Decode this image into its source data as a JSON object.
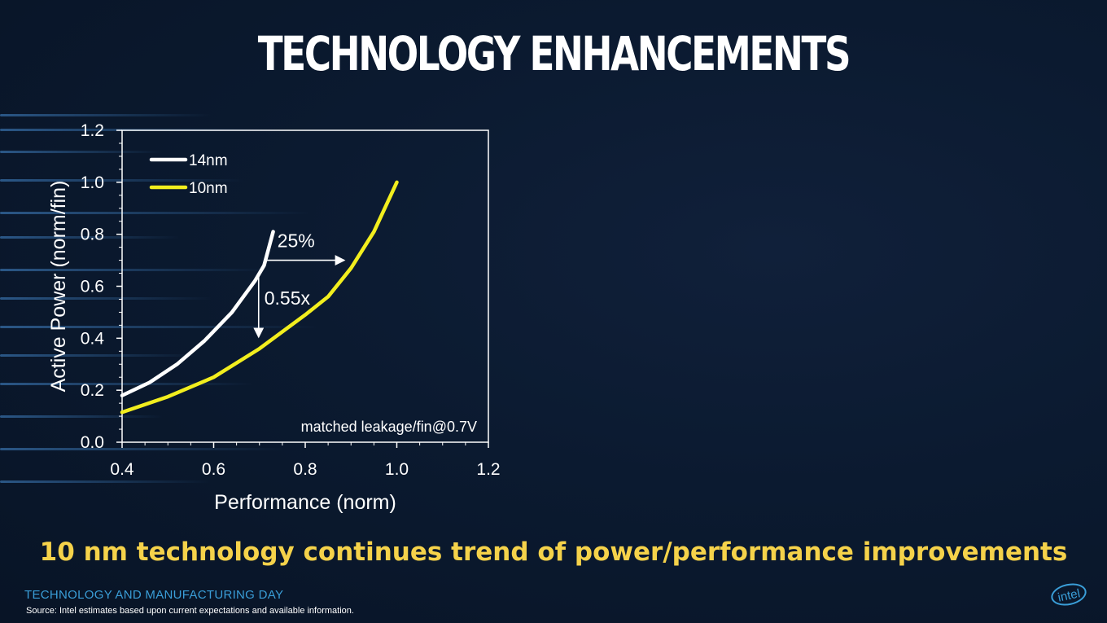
{
  "page": {
    "title": "TECHNOLOGY ENHANCEMENTS",
    "subtitle": "10 nm technology continues trend of power/performance improvements",
    "event": "TECHNOLOGY AND MANUFACTURING DAY",
    "source": "Source: Intel estimates based upon current expectations and available information.",
    "logo": "intel"
  },
  "colors": {
    "accent_yellow": "#f5d24a",
    "accent_blue": "#3a9ed8",
    "series_14nm": "#ffffff",
    "series_10nm": "#f2ee1e"
  },
  "chart_data": {
    "type": "line",
    "title": "",
    "xlabel": "Performance (norm)",
    "ylabel": "Active Power (norm/fin)",
    "xlim": [
      0.4,
      1.2
    ],
    "ylim": [
      0.0,
      1.2
    ],
    "xticks": [
      "0.4",
      "0.6",
      "0.8",
      "1.0",
      "1.2"
    ],
    "yticks": [
      "0.0",
      "0.2",
      "0.4",
      "0.6",
      "0.8",
      "1.0",
      "1.2"
    ],
    "grid": false,
    "legend_position": "top-left",
    "series": [
      {
        "name": "14nm",
        "color": "#ffffff",
        "points": [
          [
            0.4,
            0.18
          ],
          [
            0.46,
            0.23
          ],
          [
            0.52,
            0.3
          ],
          [
            0.58,
            0.39
          ],
          [
            0.64,
            0.5
          ],
          [
            0.69,
            0.62
          ],
          [
            0.71,
            0.68
          ],
          [
            0.73,
            0.81
          ]
        ]
      },
      {
        "name": "10nm",
        "color": "#f2ee1e",
        "points": [
          [
            0.4,
            0.115
          ],
          [
            0.5,
            0.175
          ],
          [
            0.6,
            0.25
          ],
          [
            0.7,
            0.36
          ],
          [
            0.8,
            0.49
          ],
          [
            0.85,
            0.56
          ],
          [
            0.9,
            0.67
          ],
          [
            0.95,
            0.81
          ],
          [
            1.0,
            1.0
          ]
        ]
      }
    ],
    "annotations": {
      "perf_gain": "25%",
      "power_reduction": "0.55x",
      "note": "matched leakage/fin@0.7V"
    }
  }
}
